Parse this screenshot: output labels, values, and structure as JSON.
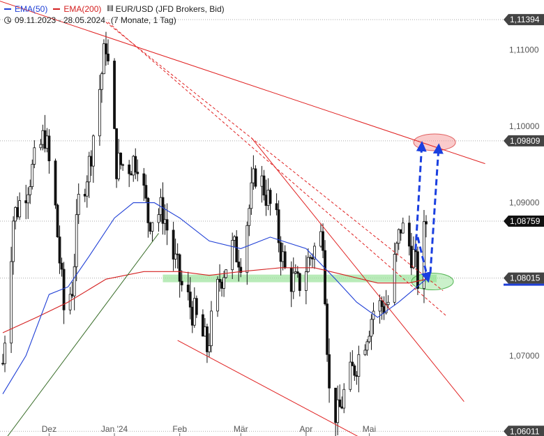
{
  "legend": {
    "ema50_label": "EMA(50)",
    "ema200_label": "EMA(200)",
    "instrument": "EUR/USD (JFD Brokers, Bid)",
    "range": "09.11.2023 - 28.05.2024",
    "period": "(7 Monate, 1 Tag)"
  },
  "colors": {
    "ema50": "#1f3fd6",
    "ema200": "#d42020",
    "trend_red": "#e02020",
    "trend_green": "#3a6e2a",
    "arrow": "#1a3fe0",
    "support_zone": "#9be39b",
    "tag_dark": "#444444",
    "tag_black": "#111111"
  },
  "chart_data": {
    "type": "candlestick",
    "instrument": "EUR/USD",
    "x_range": [
      "2023-11-09",
      "2024-05-28"
    ],
    "x_ticks": [
      {
        "date": "2023-12-01",
        "label": "Dez"
      },
      {
        "date": "2024-01-01",
        "label": "Jan '24"
      },
      {
        "date": "2024-02-01",
        "label": "Feb"
      },
      {
        "date": "2024-03-01",
        "label": "Mär"
      },
      {
        "date": "2024-04-01",
        "label": "Apr"
      },
      {
        "date": "2024-05-01",
        "label": "Mai"
      }
    ],
    "ylim": [
      1.0595,
      1.1165
    ],
    "y_ticks": [
      1.07,
      1.08,
      1.09,
      1.1,
      1.11
    ],
    "y_tick_labels": [
      "1,07000",
      "1,08000",
      "1,09000",
      "1,10000",
      "1,11000"
    ],
    "price_tags": [
      {
        "value": 1.11394,
        "label": "1,11394",
        "style": "dark"
      },
      {
        "value": 1.09809,
        "label": "1,09809",
        "style": "dark"
      },
      {
        "value": 1.08759,
        "label": "1,08759",
        "style": "black"
      },
      {
        "value": 1.08015,
        "label": "1,08015",
        "style": "dark"
      },
      {
        "value": 1.06011,
        "label": "1,06011",
        "style": "dark"
      }
    ],
    "ohlc_anchors": [
      [
        "2023-11-09",
        1.069
      ],
      [
        "2023-11-14",
        1.088
      ],
      [
        "2023-11-20",
        1.092
      ],
      [
        "2023-11-24",
        1.095
      ],
      [
        "2023-11-29",
        1.099
      ],
      [
        "2023-12-04",
        1.089
      ],
      [
        "2023-12-08",
        1.076
      ],
      [
        "2023-12-12",
        1.079
      ],
      [
        "2023-12-15",
        1.09
      ],
      [
        "2023-12-20",
        1.095
      ],
      [
        "2023-12-28",
        1.111
      ],
      [
        "2024-01-02",
        1.095
      ],
      [
        "2024-01-08",
        1.095
      ],
      [
        "2024-01-12",
        1.096
      ],
      [
        "2024-01-17",
        1.088
      ],
      [
        "2024-01-24",
        1.089
      ],
      [
        "2024-01-29",
        1.083
      ],
      [
        "2024-02-02",
        1.079
      ],
      [
        "2024-02-07",
        1.076
      ],
      [
        "2024-02-14",
        1.071
      ],
      [
        "2024-02-20",
        1.08
      ],
      [
        "2024-02-26",
        1.084
      ],
      [
        "2024-03-01",
        1.083
      ],
      [
        "2024-03-08",
        1.094
      ],
      [
        "2024-03-12",
        1.092
      ],
      [
        "2024-03-18",
        1.087
      ],
      [
        "2024-03-22",
        1.081
      ],
      [
        "2024-03-28",
        1.079
      ],
      [
        "2024-04-03",
        1.083
      ],
      [
        "2024-04-09",
        1.086
      ],
      [
        "2024-04-12",
        1.065
      ],
      [
        "2024-04-16",
        1.062
      ],
      [
        "2024-04-19",
        1.065
      ],
      [
        "2024-04-26",
        1.07
      ],
      [
        "2024-05-03",
        1.076
      ],
      [
        "2024-05-10",
        1.077
      ],
      [
        "2024-05-16",
        1.087
      ],
      [
        "2024-05-22",
        1.083
      ],
      [
        "2024-05-24",
        1.08
      ],
      [
        "2024-05-28",
        1.0876
      ]
    ],
    "ema50": [
      [
        "2023-11-09",
        1.065
      ],
      [
        "2023-11-20",
        1.07
      ],
      [
        "2023-12-01",
        1.078
      ],
      [
        "2023-12-10",
        1.079
      ],
      [
        "2023-12-20",
        1.083
      ],
      [
        "2024-01-01",
        1.088
      ],
      [
        "2024-01-10",
        1.09
      ],
      [
        "2024-01-20",
        1.09
      ],
      [
        "2024-02-01",
        1.088
      ],
      [
        "2024-02-15",
        1.085
      ],
      [
        "2024-03-01",
        1.084
      ],
      [
        "2024-03-15",
        1.0855
      ],
      [
        "2024-04-01",
        1.084
      ],
      [
        "2024-04-15",
        1.08
      ],
      [
        "2024-04-25",
        1.077
      ],
      [
        "2024-05-05",
        1.075
      ],
      [
        "2024-05-15",
        1.077
      ],
      [
        "2024-05-28",
        1.08
      ]
    ],
    "ema200": [
      [
        "2023-11-09",
        1.073
      ],
      [
        "2023-11-25",
        1.075
      ],
      [
        "2023-12-10",
        1.077
      ],
      [
        "2023-12-28",
        1.08
      ],
      [
        "2024-01-15",
        1.081
      ],
      [
        "2024-02-01",
        1.081
      ],
      [
        "2024-02-15",
        1.0805
      ],
      [
        "2024-03-01",
        1.081
      ],
      [
        "2024-03-20",
        1.0815
      ],
      [
        "2024-04-05",
        1.0815
      ],
      [
        "2024-04-20",
        1.0805
      ],
      [
        "2024-05-05",
        1.0795
      ],
      [
        "2024-05-20",
        1.0795
      ],
      [
        "2024-05-28",
        1.08
      ]
    ],
    "trendlines": [
      {
        "kind": "resistance",
        "style": "solid",
        "from": [
          "2023-11-05",
          1.1166
        ],
        "to": [
          "2024-06-25",
          1.0951
        ]
      },
      {
        "kind": "resistance",
        "style": "dashed",
        "from": [
          "2023-12-28",
          1.1136
        ],
        "to": [
          "2024-06-05",
          1.0785
        ]
      },
      {
        "kind": "resistance",
        "style": "dashed",
        "from": [
          "2023-12-29",
          1.1136
        ],
        "to": [
          "2024-06-07",
          1.0751
        ]
      },
      {
        "kind": "resistance",
        "style": "solid",
        "from": [
          "2024-03-06",
          1.0985
        ],
        "to": [
          "2024-06-15",
          1.064
        ]
      },
      {
        "kind": "support",
        "style": "solid",
        "from": [
          "2024-01-31",
          1.072
        ],
        "to": [
          "2024-04-28",
          1.0591
        ]
      },
      {
        "kind": "support",
        "style": "solid",
        "from": [
          "2023-11-10",
          1.059
        ],
        "to": [
          "2024-01-22",
          1.086
        ],
        "color": "green"
      }
    ],
    "zones": [
      {
        "type": "support_band",
        "from_date": "2024-01-24",
        "to_date": "2024-06-02",
        "low": 1.0796,
        "high": 1.0806
      }
    ],
    "highlights": [
      {
        "center": [
          "2024-06-01",
          1.0979
        ],
        "color": "red"
      },
      {
        "center": [
          "2024-05-31",
          1.0797
        ],
        "color": "green"
      }
    ],
    "arrows": [
      {
        "from": [
          "2024-05-23",
          1.0838
        ],
        "to": [
          "2024-05-26",
          1.0978
        ]
      },
      {
        "from": [
          "2024-05-30",
          1.0808
        ],
        "to": [
          "2024-06-03",
          1.0975
        ]
      },
      {
        "from": [
          "2024-05-24",
          1.0855
        ],
        "to": [
          "2024-05-29",
          1.0798
        ]
      }
    ]
  }
}
